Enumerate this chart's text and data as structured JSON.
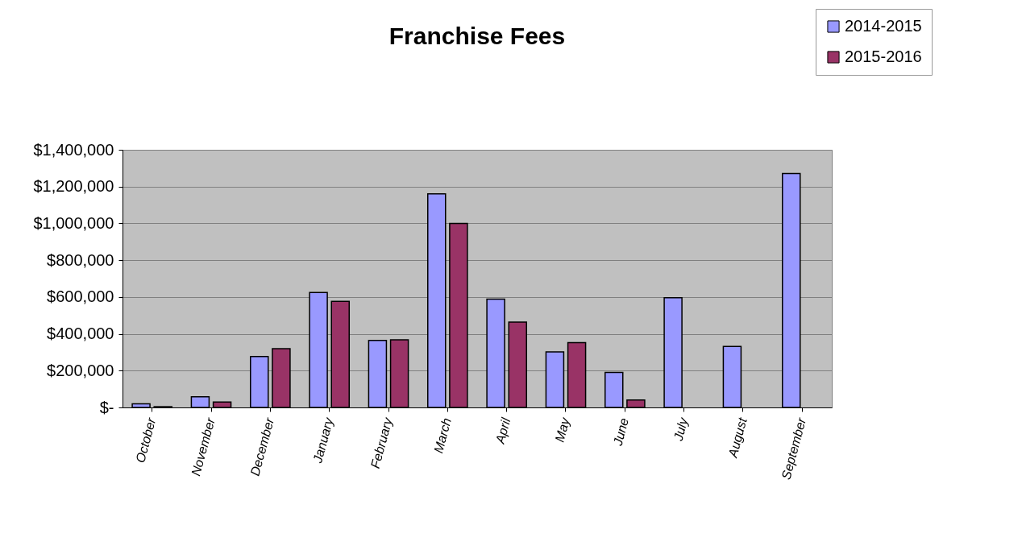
{
  "chart_data": {
    "type": "bar",
    "title": "Franchise Fees",
    "categories": [
      "October",
      "November",
      "December",
      "January",
      "February",
      "March",
      "April",
      "May",
      "June",
      "July",
      "August",
      "September"
    ],
    "series": [
      {
        "name": "2014-2015",
        "color": "#9999ff",
        "values": [
          20000,
          58000,
          277000,
          625000,
          364000,
          1160000,
          588000,
          302000,
          190000,
          596000,
          331000,
          1271000
        ]
      },
      {
        "name": "2015-2016",
        "color": "#993366",
        "values": [
          4000,
          29000,
          319000,
          576000,
          368000,
          1000000,
          464000,
          352000,
          41000,
          null,
          null,
          null
        ]
      }
    ],
    "ylim": [
      0,
      1400000
    ],
    "yticks": [
      {
        "value": 0,
        "label": "$-"
      },
      {
        "value": 200000,
        "label": "$200,000"
      },
      {
        "value": 400000,
        "label": "$400,000"
      },
      {
        "value": 600000,
        "label": "$600,000"
      },
      {
        "value": 800000,
        "label": "$800,000"
      },
      {
        "value": 1000000,
        "label": "$1,000,000"
      },
      {
        "value": 1200000,
        "label": "$1,200,000"
      },
      {
        "value": 1400000,
        "label": "$1,400,000"
      }
    ],
    "grid": "y",
    "legend": "top right"
  }
}
